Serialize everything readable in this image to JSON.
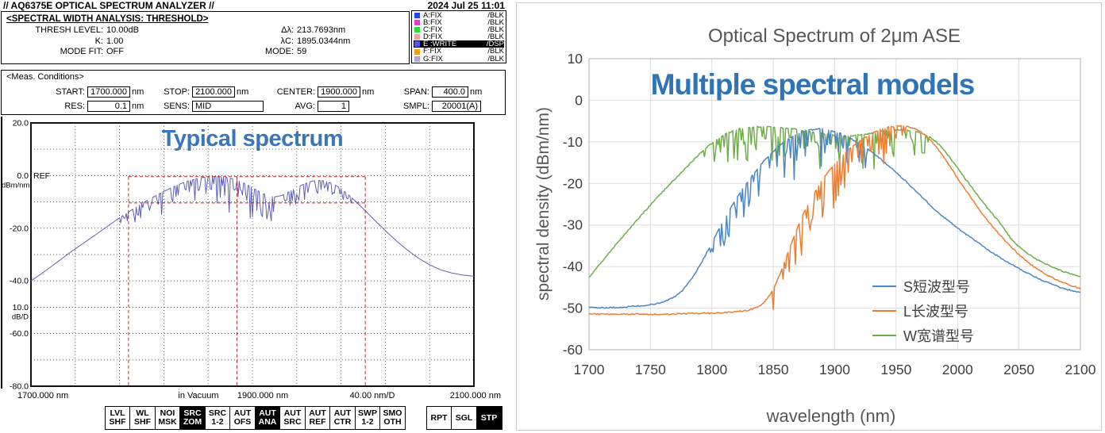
{
  "left_panel": {
    "titlebar": {
      "title": "// AQ6375E OPTICAL SPECTRUM ANALYZER //",
      "datetime": "2024 Jul 25 11:01"
    },
    "analysis": {
      "heading": "<SPECTRAL WIDTH ANALYSIS: THRESHOLD>",
      "fields": [
        {
          "label": "THRESH LEVEL:",
          "value": "10.00dB"
        },
        {
          "label": "K:",
          "value": "1.00"
        },
        {
          "label": "MODE FIT:",
          "value": "OFF"
        },
        {
          "label": "Δλ:",
          "value": "213.7693nm"
        },
        {
          "label": "λC:",
          "value": "1895.0344nm"
        },
        {
          "label": "MODE:",
          "value": "59"
        }
      ]
    },
    "traces": [
      {
        "name": "A:FIX",
        "mode": "/BLK",
        "color": "#2742e8",
        "active": false
      },
      {
        "name": "B:FIX",
        "mode": "/BLK",
        "color": "#e836d0",
        "active": false
      },
      {
        "name": "C:FIX",
        "mode": "/BLK",
        "color": "#22e22e",
        "active": false
      },
      {
        "name": "D:FIX",
        "mode": "/BLK",
        "color": "#f2a0a0",
        "active": false
      },
      {
        "name": "E :WRITE",
        "mode": "/DSP",
        "color": "#5c55dd",
        "active": true
      },
      {
        "name": "F:FIX",
        "mode": "/BLK",
        "color": "#f0a018",
        "active": false
      },
      {
        "name": "G:FIX",
        "mode": "/BLK",
        "color": "#b3a6d6",
        "active": false
      }
    ],
    "meas": {
      "heading": "<Meas. Conditions>",
      "row1": [
        {
          "label": "START:",
          "value": "1700.000",
          "unit": "nm"
        },
        {
          "label": "STOP:",
          "value": "2100.000",
          "unit": "nm"
        },
        {
          "label": "CENTER:",
          "value": "1900.000",
          "unit": "nm"
        },
        {
          "label": "SPAN:",
          "value": "400.0",
          "unit": "nm"
        }
      ],
      "row2": [
        {
          "label": "RES:",
          "value": "0.1",
          "unit": "nm"
        },
        {
          "label": "SENS:",
          "value": "MID",
          "unit": "",
          "wide": true,
          "leftalign": true
        },
        {
          "label": "AVG:",
          "value": "1",
          "unit": ""
        },
        {
          "label": "SMPL:",
          "value": "20001(A)",
          "unit": ""
        }
      ]
    },
    "plot": {
      "annotation": "Typical spectrum",
      "ref_label": "REF",
      "unit_label": "dBm/nm",
      "scale_value": "10.0",
      "scale_unit": "dB/D"
    },
    "softkeys": {
      "group1": [
        {
          "line1": "LVL",
          "line2": "SHF",
          "active": false
        },
        {
          "line1": "WL",
          "line2": "SHF",
          "active": false
        },
        {
          "line1": "NOI",
          "line2": "MSK",
          "active": false
        },
        {
          "line1": "SRC",
          "line2": "ZOM",
          "active": true
        },
        {
          "line1": "SRC",
          "line2": "1-2",
          "active": false
        },
        {
          "line1": "AUT",
          "line2": "OFS",
          "active": false
        },
        {
          "line1": "AUT",
          "line2": "ANA",
          "active": true
        },
        {
          "line1": "AUT",
          "line2": "SRC",
          "active": false
        },
        {
          "line1": "AUT",
          "line2": "REF",
          "active": false
        },
        {
          "line1": "AUT",
          "line2": "CTR",
          "active": false
        },
        {
          "line1": "SWP",
          "line2": "1-2",
          "active": false
        },
        {
          "line1": "SMO",
          "line2": "OTH",
          "active": false
        }
      ],
      "group2": [
        {
          "line1": "RPT",
          "active": false
        },
        {
          "line1": "SGL",
          "active": false
        },
        {
          "line1": "STP",
          "active": true
        }
      ]
    }
  },
  "chart_data": [
    {
      "id": "osa-spectrum",
      "type": "line",
      "title": "Typical spectrum",
      "x_range": [
        1700,
        2100
      ],
      "y_range": [
        -80,
        20
      ],
      "y_ticks": [
        20,
        0,
        -20,
        -40,
        -60,
        -80
      ],
      "x_axis_labels": [
        "1700.000 nm",
        "in Vacuum",
        "1900.000 nm",
        "40.00 nm/D",
        "2100.000 nm"
      ],
      "grid": "dotted 10x10, 10 dB/div, 40 nm/div",
      "series": [
        {
          "name": "E:WRITE trace",
          "color": "#5d5db8",
          "envelope": [
            [
              1700,
              -40
            ],
            [
              1712,
              -36.5
            ],
            [
              1724,
              -32.8
            ],
            [
              1736,
              -29
            ],
            [
              1748,
              -25.5
            ],
            [
              1760,
              -22
            ],
            [
              1772,
              -18.4
            ],
            [
              1784,
              -14.9
            ],
            [
              1796,
              -11.7
            ],
            [
              1808,
              -8.7
            ],
            [
              1820,
              -6
            ],
            [
              1832,
              -3.6
            ],
            [
              1842,
              -2
            ],
            [
              1852,
              -0.9
            ],
            [
              1860,
              -0.4
            ],
            [
              1868,
              -0.3
            ],
            [
              1876,
              -0.6
            ],
            [
              1884,
              -1.4
            ],
            [
              1892,
              -2.8
            ],
            [
              1900,
              -4.6
            ],
            [
              1908,
              -6.5
            ],
            [
              1915,
              -7.8
            ],
            [
              1920,
              -8.1
            ],
            [
              1926,
              -7.6
            ],
            [
              1933,
              -6.2
            ],
            [
              1940,
              -4.6
            ],
            [
              1947,
              -3.1
            ],
            [
              1953,
              -2.2
            ],
            [
              1958,
              -1.8
            ],
            [
              1963,
              -1.9
            ],
            [
              1968,
              -2.4
            ],
            [
              1974,
              -3.4
            ],
            [
              1980,
              -5
            ],
            [
              1986,
              -7
            ],
            [
              1992,
              -9.3
            ],
            [
              2000,
              -12.6
            ],
            [
              2010,
              -16.8
            ],
            [
              2020,
              -20.9
            ],
            [
              2030,
              -24.8
            ],
            [
              2040,
              -28.3
            ],
            [
              2050,
              -31.4
            ],
            [
              2060,
              -33.9
            ],
            [
              2070,
              -35.8
            ],
            [
              2080,
              -37
            ],
            [
              2090,
              -37.8
            ],
            [
              2100,
              -38.2
            ]
          ],
          "dips": {
            "start": 1780,
            "end": 1990,
            "count": 130,
            "max_depth": 14,
            "seed": 11
          }
        }
      ],
      "threshold_box": {
        "color": "#c22222",
        "x_left": 1788.1,
        "x_center": 1886,
        "x_right": 2001.9,
        "y_top": -0.4,
        "y_threshold": -10.4
      }
    },
    {
      "id": "ase-models",
      "type": "line",
      "title": "Optical Spectrum of 2μm ASE",
      "annotation": "Multiple spectral models",
      "xlabel": "wavelength (nm)",
      "ylabel": "spectral density (dBm/nm)",
      "x_range": [
        1700,
        2100
      ],
      "y_range": [
        -60,
        10
      ],
      "x_ticks": [
        1700,
        1750,
        1800,
        1850,
        1900,
        1950,
        2000,
        2050,
        2100
      ],
      "y_ticks": [
        10,
        0,
        -10,
        -20,
        -30,
        -40,
        -50,
        -60
      ],
      "grid": "on",
      "legend_position": "inside lower-right",
      "series": [
        {
          "name": "S短波型号",
          "color": "#4d86c2",
          "envelope": [
            [
              1700,
              -49.8
            ],
            [
              1715,
              -49.9
            ],
            [
              1730,
              -49.7
            ],
            [
              1745,
              -49.4
            ],
            [
              1758,
              -48.8
            ],
            [
              1768,
              -47.6
            ],
            [
              1776,
              -45.8
            ],
            [
              1784,
              -42.8
            ],
            [
              1792,
              -38.8
            ],
            [
              1800,
              -34.3
            ],
            [
              1808,
              -29.8
            ],
            [
              1816,
              -25.6
            ],
            [
              1824,
              -21.8
            ],
            [
              1832,
              -18.4
            ],
            [
              1840,
              -15.4
            ],
            [
              1848,
              -12.8
            ],
            [
              1856,
              -10.7
            ],
            [
              1864,
              -9
            ],
            [
              1872,
              -7.8
            ],
            [
              1880,
              -7.1
            ],
            [
              1888,
              -6.9
            ],
            [
              1896,
              -7.2
            ],
            [
              1904,
              -7.9
            ],
            [
              1912,
              -9
            ],
            [
              1920,
              -10.4
            ],
            [
              1928,
              -12
            ],
            [
              1936,
              -13.8
            ],
            [
              1944,
              -15.8
            ],
            [
              1952,
              -17.9
            ],
            [
              1960,
              -20.1
            ],
            [
              1970,
              -23
            ],
            [
              1980,
              -25.9
            ],
            [
              1990,
              -28.4
            ],
            [
              2000,
              -30.7
            ],
            [
              2012,
              -33.3
            ],
            [
              2024,
              -35.8
            ],
            [
              2036,
              -38.1
            ],
            [
              2048,
              -40.2
            ],
            [
              2060,
              -42.1
            ],
            [
              2072,
              -43.7
            ],
            [
              2084,
              -45
            ],
            [
              2092,
              -45.7
            ],
            [
              2100,
              -46.3
            ]
          ],
          "dips": {
            "start": 1798,
            "end": 1932,
            "count": 60,
            "max_depth": 12,
            "seed": 23
          }
        },
        {
          "name": "L长波型号",
          "color": "#ec7d31",
          "envelope": [
            [
              1700,
              -51.4
            ],
            [
              1720,
              -51.5
            ],
            [
              1740,
              -51.4
            ],
            [
              1760,
              -51.5
            ],
            [
              1780,
              -51.3
            ],
            [
              1800,
              -51.2
            ],
            [
              1815,
              -51
            ],
            [
              1828,
              -50.6
            ],
            [
              1836,
              -49.9
            ],
            [
              1842,
              -48.8
            ],
            [
              1847,
              -47
            ],
            [
              1852,
              -44.2
            ],
            [
              1857,
              -40.6
            ],
            [
              1862,
              -36.6
            ],
            [
              1868,
              -31.9
            ],
            [
              1874,
              -27.6
            ],
            [
              1881,
              -23.5
            ],
            [
              1888,
              -20
            ],
            [
              1896,
              -16.8
            ],
            [
              1904,
              -14
            ],
            [
              1912,
              -11.7
            ],
            [
              1920,
              -9.8
            ],
            [
              1928,
              -8.3
            ],
            [
              1936,
              -7.2
            ],
            [
              1944,
              -6.5
            ],
            [
              1951,
              -6.2
            ],
            [
              1958,
              -6.3
            ],
            [
              1964,
              -6.7
            ],
            [
              1970,
              -7.6
            ],
            [
              1976,
              -9
            ],
            [
              1982,
              -11
            ],
            [
              1988,
              -13.4
            ],
            [
              1995,
              -16.4
            ],
            [
              2002,
              -19.6
            ],
            [
              2010,
              -23
            ],
            [
              2020,
              -27.2
            ],
            [
              2030,
              -30.9
            ],
            [
              2040,
              -34.2
            ],
            [
              2050,
              -37.1
            ],
            [
              2060,
              -39.6
            ],
            [
              2072,
              -41.9
            ],
            [
              2084,
              -43.6
            ],
            [
              2100,
              -45.3
            ]
          ],
          "dips": {
            "start": 1849,
            "end": 1958,
            "count": 55,
            "max_depth": 15,
            "seed": 37
          }
        },
        {
          "name": "W宽谱型号",
          "color": "#6fad49",
          "envelope": [
            [
              1700,
              -42.6
            ],
            [
              1710,
              -39
            ],
            [
              1720,
              -35.4
            ],
            [
              1730,
              -31.9
            ],
            [
              1740,
              -28.5
            ],
            [
              1750,
              -25.2
            ],
            [
              1760,
              -22
            ],
            [
              1770,
              -18.9
            ],
            [
              1780,
              -15.9
            ],
            [
              1788,
              -13.5
            ],
            [
              1796,
              -11.3
            ],
            [
              1804,
              -9.4
            ],
            [
              1812,
              -8
            ],
            [
              1820,
              -7.1
            ],
            [
              1828,
              -6.6
            ],
            [
              1836,
              -6.4
            ],
            [
              1846,
              -6.4
            ],
            [
              1856,
              -6.6
            ],
            [
              1866,
              -6.9
            ],
            [
              1876,
              -7.3
            ],
            [
              1886,
              -7.8
            ],
            [
              1896,
              -8.3
            ],
            [
              1906,
              -8.6
            ],
            [
              1914,
              -8.6
            ],
            [
              1922,
              -8.3
            ],
            [
              1930,
              -7.9
            ],
            [
              1938,
              -7.5
            ],
            [
              1946,
              -7.2
            ],
            [
              1954,
              -7.1
            ],
            [
              1962,
              -7.3
            ],
            [
              1970,
              -7.9
            ],
            [
              1978,
              -9
            ],
            [
              1986,
              -10.9
            ],
            [
              1994,
              -13.8
            ],
            [
              2002,
              -17.2
            ],
            [
              2010,
              -20.3
            ],
            [
              2018,
              -23.5
            ],
            [
              2026,
              -26.5
            ],
            [
              2034,
              -29.3
            ],
            [
              2044,
              -33.5
            ],
            [
              2054,
              -36.2
            ],
            [
              2064,
              -38.2
            ],
            [
              2076,
              -40
            ],
            [
              2088,
              -41.4
            ],
            [
              2100,
              -42.4
            ]
          ],
          "dips": {
            "start": 1793,
            "end": 1982,
            "count": 90,
            "max_depth": 12,
            "seed": 53
          }
        }
      ]
    }
  ]
}
